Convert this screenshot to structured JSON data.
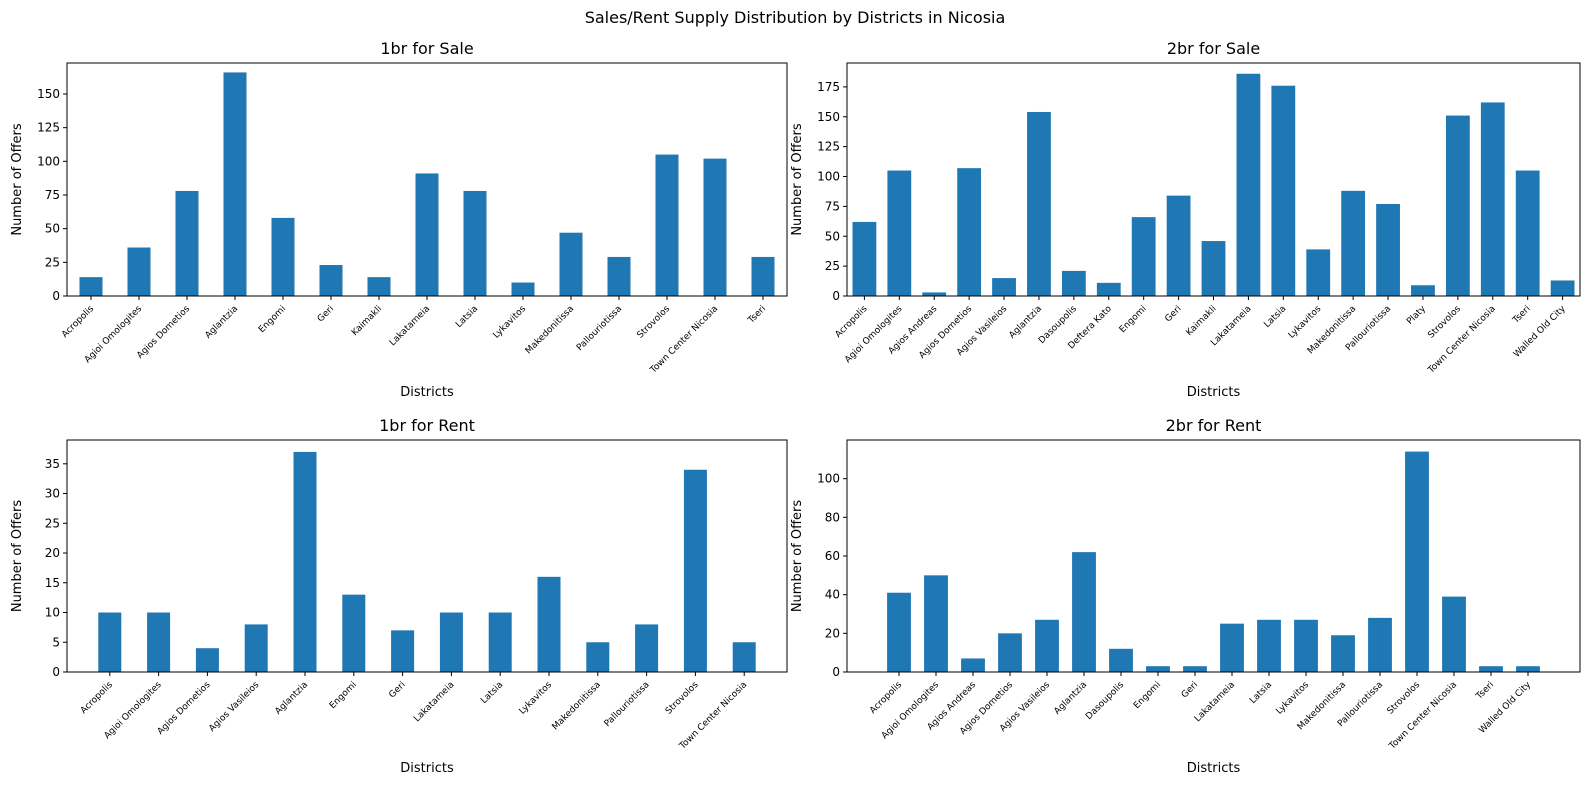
{
  "figure_title": "Sales/Rent Supply Distribution by Districts in Nicosia",
  "chart_data": [
    {
      "type": "bar",
      "title": "1br for Sale",
      "xlabel": "Districts",
      "ylabel": "Number of Offers",
      "ylim": [
        0,
        173
      ],
      "yticks": [
        0,
        25,
        50,
        75,
        100,
        125,
        150
      ],
      "bar_color": "#1f77b4",
      "categories": [
        "Acropolis",
        "Agioi Omologites",
        "Agios Dometios",
        "Aglantzia",
        "Engomi",
        "Geri",
        "Kaimakli",
        "Lakatameia",
        "Latsia",
        "Lykavitos",
        "Makedonitissa",
        "Pallouriotissa",
        "Strovolos",
        "Town Center Nicosia",
        "Tseri"
      ],
      "values": [
        14,
        36,
        78,
        166,
        58,
        23,
        14,
        91,
        78,
        10,
        47,
        29,
        105,
        102,
        29
      ]
    },
    {
      "type": "bar",
      "title": "2br for Sale",
      "xlabel": "Districts",
      "ylabel": "Number of Offers",
      "ylim": [
        0,
        195
      ],
      "yticks": [
        0,
        25,
        50,
        75,
        100,
        125,
        150,
        175
      ],
      "bar_color": "#1f77b4",
      "categories": [
        "Acropolis",
        "Agioi Omologites",
        "Agios Andreas",
        "Agios Dometios",
        "Agios Vasileios",
        "Aglantzia",
        "Dasoupolis",
        "Deftera Kato",
        "Engomi",
        "Geri",
        "Kaimakli",
        "Lakatameia",
        "Latsia",
        "Lykavitos",
        "Makedonitissa",
        "Pallouriotissa",
        "Platy",
        "Strovolos",
        "Town Center Nicosia",
        "Tseri",
        "Walled Old City"
      ],
      "values": [
        62,
        105,
        3,
        107,
        15,
        154,
        21,
        11,
        66,
        84,
        46,
        186,
        176,
        39,
        88,
        77,
        9,
        151,
        162,
        105,
        13
      ]
    },
    {
      "type": "bar",
      "title": "1br for Rent",
      "xlabel": "Districts",
      "ylabel": "Number of Offers",
      "ylim": [
        0,
        39
      ],
      "yticks": [
        0,
        5,
        10,
        15,
        20,
        25,
        30,
        35
      ],
      "bar_color": "#1f77b4",
      "categories": [
        "Acropolis",
        "Agioi Omologites",
        "Agios Dometios",
        "Agios Vasileios",
        "Aglantzia",
        "Engomi",
        "Geri",
        "Lakatameia",
        "Latsia",
        "Lykavitos",
        "Makedonitissa",
        "Pallouriotissa",
        "Strovolos",
        "Town Center Nicosia"
      ],
      "values": [
        10,
        10,
        4,
        8,
        37,
        13,
        7,
        10,
        10,
        16,
        5,
        8,
        34,
        5
      ]
    },
    {
      "type": "bar",
      "title": "2br for Rent",
      "xlabel": "Districts",
      "ylabel": "Number of Offers",
      "ylim": [
        0,
        120
      ],
      "yticks": [
        0,
        20,
        40,
        60,
        80,
        100
      ],
      "bar_color": "#1f77b4",
      "categories": [
        "Acropolis",
        "Agioi Omologites",
        "Agios Andreas",
        "Agios Dometios",
        "Agios Vasileios",
        "Aglantzia",
        "Dasoupolis",
        "Engomi",
        "Geri",
        "Lakatameia",
        "Latsia",
        "Lykavitos",
        "Makedonitissa",
        "Pallouriotissa",
        "Strovolos",
        "Town Center Nicosia",
        "Tseri",
        "Walled Old City"
      ],
      "values": [
        41,
        50,
        7,
        20,
        27,
        62,
        12,
        3,
        3,
        25,
        27,
        27,
        19,
        28,
        114,
        39,
        3,
        3
      ]
    }
  ]
}
